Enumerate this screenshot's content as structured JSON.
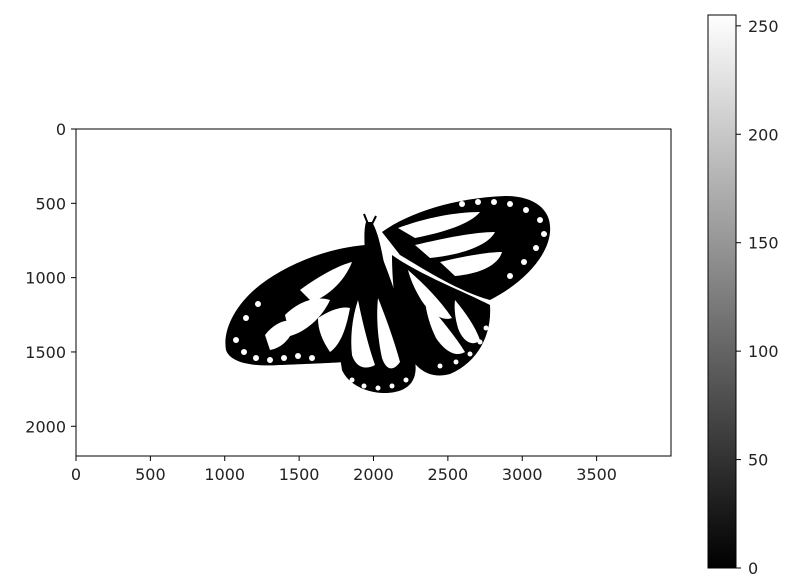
{
  "chart_data": {
    "type": "heatmap",
    "colormap": "gray",
    "image": {
      "description_of_content": "binary thresholded black-and-white image of a butterfly (0 = black, 255 = white)",
      "extent": {
        "x": [
          0,
          4000
        ],
        "y": [
          0,
          2200
        ]
      },
      "y_inverted": true
    },
    "x_ticks": [
      0,
      500,
      1000,
      1500,
      2000,
      2500,
      3000,
      3500
    ],
    "y_ticks": [
      0,
      500,
      1000,
      1500,
      2000
    ],
    "colorbar": {
      "range": [
        0,
        255
      ],
      "ticks": [
        0,
        50,
        100,
        150,
        200,
        250
      ]
    },
    "grid": false
  }
}
